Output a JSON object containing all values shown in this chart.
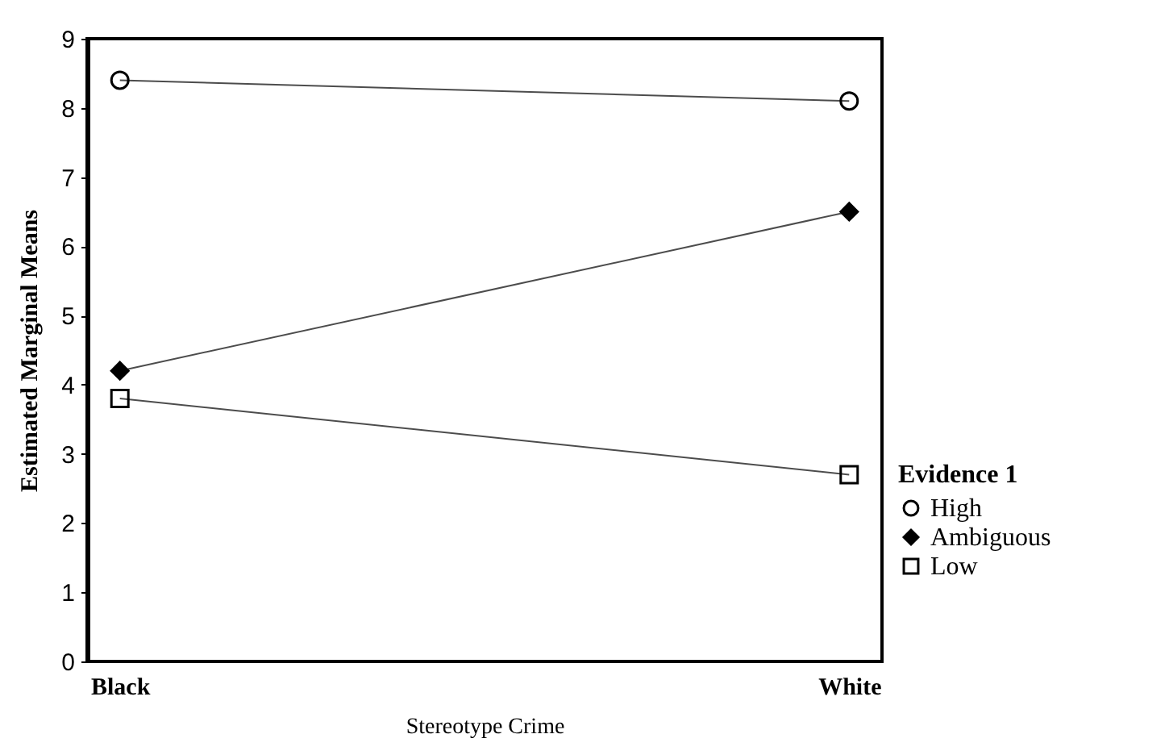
{
  "chart_data": {
    "type": "line",
    "xlabel": "Stereotype Crime",
    "ylabel": "Estimated Marginal Means",
    "legend_title": "Evidence 1",
    "categories": [
      "Black",
      "White"
    ],
    "series": [
      {
        "name": "High",
        "color": "#000000",
        "marker": "circle",
        "values": [
          8.4,
          8.1
        ]
      },
      {
        "name": "Ambiguous",
        "color": "#000000",
        "marker": "diamond",
        "values": [
          4.2,
          6.5
        ]
      },
      {
        "name": "Low",
        "color": "#000000",
        "marker": "square",
        "values": [
          3.8,
          2.7
        ]
      }
    ],
    "ylim": [
      0,
      9
    ],
    "yticks": [
      0,
      1,
      2,
      3,
      4,
      5,
      6,
      7,
      8,
      9
    ],
    "grid": false,
    "legend": "right"
  }
}
